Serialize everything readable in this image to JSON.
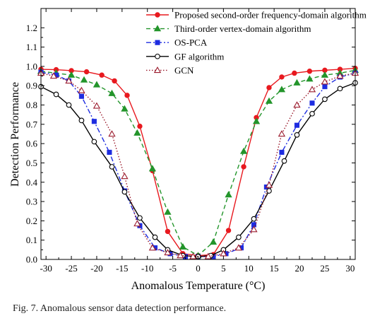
{
  "caption": "Fig. 7.   Anomalous sensor data detection performance.",
  "chart_data": {
    "type": "line",
    "title": "",
    "xlabel": "Anomalous Temperature (°C)",
    "ylabel": "Detection Performance",
    "xlim": [
      -31,
      31
    ],
    "ylim": [
      0,
      1.3
    ],
    "xticks": [
      -30,
      -25,
      -20,
      -15,
      -10,
      -5,
      0,
      5,
      10,
      15,
      20,
      25,
      30
    ],
    "yticks": [
      0.0,
      0.1,
      0.2,
      0.3,
      0.4,
      0.5,
      0.6,
      0.7,
      0.8,
      0.9,
      1.0,
      1.1,
      1.2
    ],
    "legend_position": "top-right",
    "grid": false,
    "series": [
      {
        "name": "Proposed second-order frequency-domain algorithm",
        "color": "#e8191f",
        "dash": "solid",
        "marker": "filled-circle",
        "x": [
          -31,
          -28,
          -25,
          -22,
          -19,
          -16.5,
          -14,
          -11.5,
          -9,
          -6,
          -3,
          0,
          3,
          6,
          9,
          11.5,
          14,
          16.5,
          19,
          22,
          25,
          28,
          31
        ],
        "y": [
          0.985,
          0.983,
          0.978,
          0.972,
          0.955,
          0.925,
          0.85,
          0.69,
          0.46,
          0.145,
          0.03,
          0.02,
          0.025,
          0.15,
          0.48,
          0.735,
          0.89,
          0.945,
          0.965,
          0.975,
          0.98,
          0.985,
          0.99
        ]
      },
      {
        "name": "Third-order vertex-domain algorithm",
        "color": "#23952b",
        "dash": "dashed",
        "marker": "filled-triangle",
        "x": [
          -31,
          -28,
          -25,
          -22.5,
          -20,
          -17,
          -14.5,
          -12,
          -9,
          -6,
          -3,
          0,
          3,
          6,
          9,
          11.5,
          14,
          16.5,
          19.5,
          22,
          25,
          28,
          31
        ],
        "y": [
          0.975,
          0.965,
          0.955,
          0.93,
          0.905,
          0.86,
          0.78,
          0.655,
          0.47,
          0.245,
          0.065,
          0.02,
          0.09,
          0.335,
          0.56,
          0.715,
          0.82,
          0.88,
          0.915,
          0.935,
          0.955,
          0.965,
          0.98
        ]
      },
      {
        "name": "OS-PCA",
        "color": "#1d2ce0",
        "dash": "dashdot",
        "marker": "filled-square",
        "x": [
          -31,
          -28,
          -25.5,
          -23,
          -20.5,
          -17.5,
          -14.5,
          -11.5,
          -8.5,
          -5.5,
          -2.5,
          0,
          3,
          5.5,
          8.5,
          11,
          13.5,
          16.5,
          19.5,
          22.5,
          25,
          28,
          31
        ],
        "y": [
          0.97,
          0.955,
          0.925,
          0.845,
          0.715,
          0.555,
          0.355,
          0.175,
          0.06,
          0.03,
          0.015,
          0.015,
          0.015,
          0.03,
          0.06,
          0.18,
          0.375,
          0.555,
          0.695,
          0.81,
          0.895,
          0.945,
          0.965
        ]
      },
      {
        "name": "GF algorithm",
        "color": "#000000",
        "dash": "solid",
        "marker": "open-circle",
        "x": [
          -31,
          -28,
          -25.5,
          -23,
          -20.5,
          -17,
          -14.5,
          -11.5,
          -8.5,
          -6,
          -3,
          0,
          2.5,
          5,
          8,
          11,
          14,
          17,
          19.5,
          22.5,
          25,
          28,
          31
        ],
        "y": [
          0.895,
          0.855,
          0.8,
          0.72,
          0.61,
          0.48,
          0.35,
          0.215,
          0.115,
          0.05,
          0.02,
          0.015,
          0.02,
          0.05,
          0.115,
          0.21,
          0.355,
          0.51,
          0.645,
          0.755,
          0.83,
          0.885,
          0.915
        ]
      },
      {
        "name": "GCN",
        "color": "#9b1b2d",
        "dash": "dotted",
        "marker": "open-triangle",
        "x": [
          -31,
          -28.5,
          -25.5,
          -23,
          -20,
          -17,
          -14.5,
          -12,
          -9,
          -6,
          -3.5,
          -1,
          2,
          5,
          8,
          11,
          14,
          16.5,
          19.5,
          22.5,
          25,
          28,
          31
        ],
        "y": [
          0.965,
          0.95,
          0.925,
          0.875,
          0.795,
          0.65,
          0.43,
          0.185,
          0.06,
          0.035,
          0.02,
          0.015,
          0.015,
          0.03,
          0.06,
          0.155,
          0.385,
          0.65,
          0.8,
          0.88,
          0.92,
          0.95,
          0.965
        ]
      }
    ]
  }
}
